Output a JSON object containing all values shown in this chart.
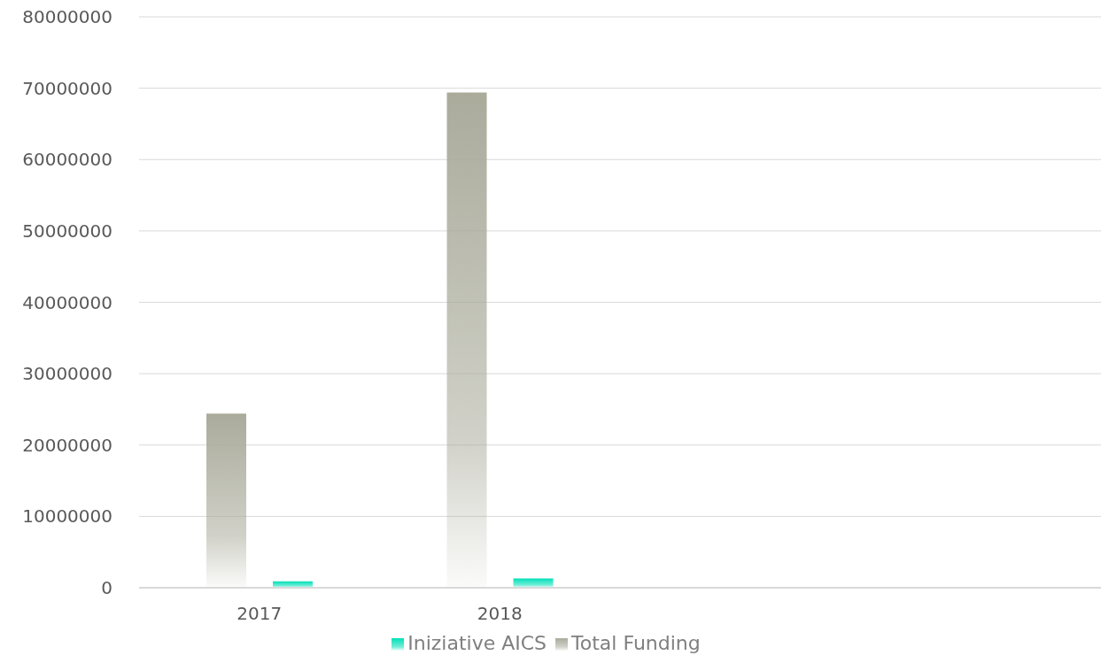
{
  "chart_data": {
    "type": "bar",
    "categories": [
      "2017",
      "2018",
      null,
      null
    ],
    "series": [
      {
        "name": "Total Funding",
        "color": "#aaab9b",
        "values": [
          24400000,
          69400000,
          null,
          null
        ]
      },
      {
        "name": "Iniziative AICS",
        "color": "#00e0b8",
        "values": [
          900000,
          1300000,
          null,
          null
        ]
      }
    ],
    "ylim": [
      0,
      80000000
    ],
    "yticks": [
      0,
      10000000,
      20000000,
      30000000,
      40000000,
      50000000,
      60000000,
      70000000,
      80000000
    ],
    "grid": "y",
    "legend": "bottom"
  }
}
